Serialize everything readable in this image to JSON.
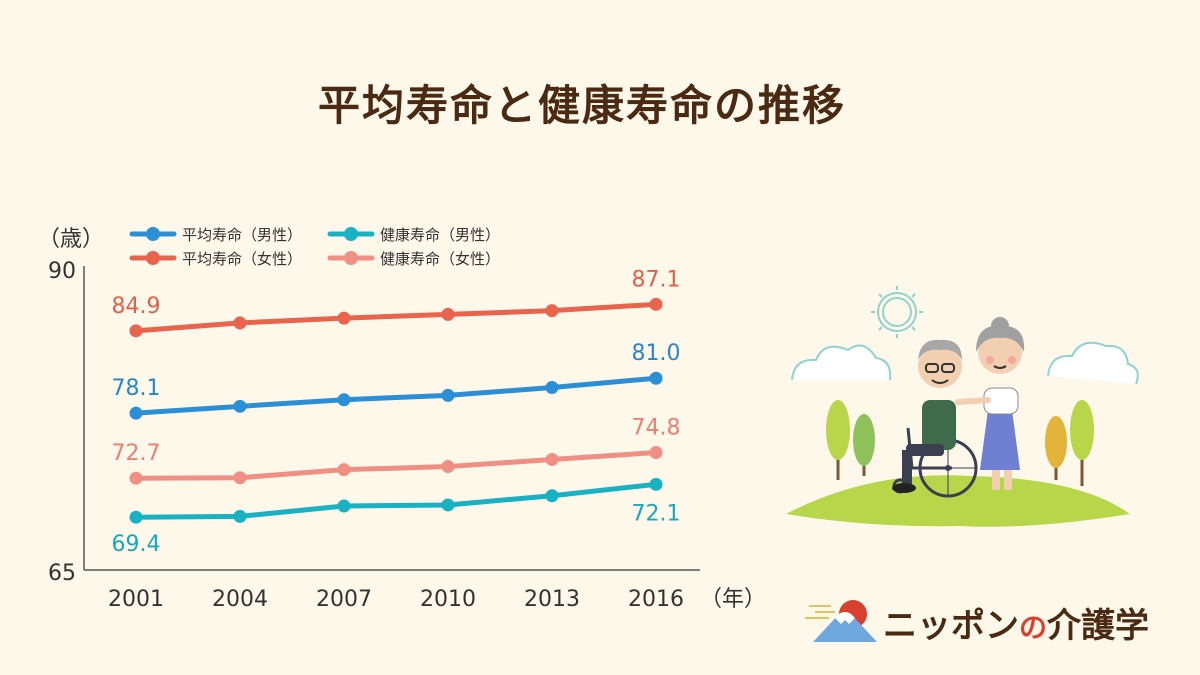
{
  "title": "平均寿命と健康寿命の推移",
  "chart_data": {
    "type": "line",
    "y_unit_label": "（歳）",
    "x_unit_label": "（年）",
    "x": [
      "2001",
      "2004",
      "2007",
      "2010",
      "2013",
      "2016"
    ],
    "ylim": [
      65,
      90
    ],
    "ytick_labels": [
      "90",
      "65"
    ],
    "grid": false,
    "legend_position": "top",
    "series": [
      {
        "name": "平均寿命（男性）",
        "color": "#2a8fd6",
        "label_color": "#2a86c8",
        "values": [
          78.07,
          78.64,
          79.19,
          79.55,
          80.21,
          80.98
        ],
        "labels": [
          "78.1",
          "",
          "",
          "",
          "",
          "81.0"
        ]
      },
      {
        "name": "平均寿命（女性）",
        "color": "#e8644c",
        "label_color": "#e2604a",
        "values": [
          84.93,
          85.59,
          85.99,
          86.3,
          86.61,
          87.14
        ],
        "labels": [
          "84.9",
          "",
          "",
          "",
          "",
          "87.1"
        ]
      },
      {
        "name": "健康寿命（男性）",
        "color": "#19b2c2",
        "label_color": "#16a9bb",
        "values": [
          69.4,
          69.47,
          70.33,
          70.42,
          71.19,
          72.14
        ],
        "labels": [
          "69.4",
          "",
          "",
          "",
          "",
          "72.1"
        ]
      },
      {
        "name": "健康寿命（女性）",
        "color": "#f08f84",
        "label_color": "#ec8070",
        "values": [
          72.65,
          72.69,
          73.36,
          73.62,
          74.21,
          74.79
        ],
        "labels": [
          "72.7",
          "",
          "",
          "",
          "",
          "74.8"
        ]
      }
    ]
  },
  "brand": {
    "name_part1": "ニッポン",
    "name_part2": "の",
    "name_part3": "介護学"
  }
}
